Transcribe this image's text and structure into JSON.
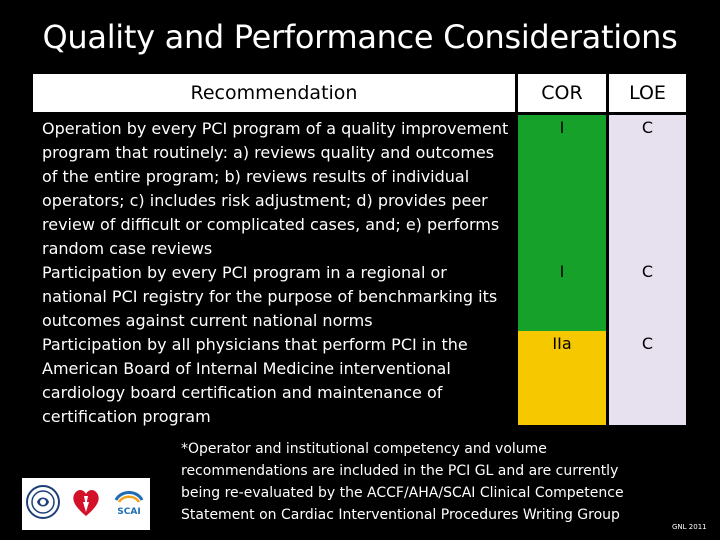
{
  "slide": {
    "title": "Quality and Performance Considerations"
  },
  "table": {
    "headers": {
      "recommendation": "Recommendation",
      "cor": "COR",
      "loe": "LOE"
    },
    "rows": [
      {
        "recommendation": "Operation by every PCI program of a quality improvement program that routinely: a) reviews quality and outcomes of the entire program; b) reviews results of individual operators; c) includes risk adjustment; d) provides peer review of difficult or complicated cases, and; e) performs random case reviews",
        "cor": "I",
        "loe": "C"
      },
      {
        "recommendation": "Participation by every PCI program in a regional or national PCI registry for the purpose of benchmarking its outcomes against current national norms",
        "cor": "I",
        "loe": "C"
      },
      {
        "recommendation": "Participation by all physicians that perform PCI in the American Board of Internal Medicine interventional cardiology board certification and maintenance of certification program",
        "cor": "IIa",
        "loe": "C"
      }
    ],
    "colors": {
      "cor_class_I": "#16a12b",
      "cor_class_IIa": "#f6c800",
      "loe_column": "#e6e0ef"
    }
  },
  "footnote": "*Operator and institutional competency and volume recommendations are included in the PCI GL and are currently being re-evaluated by the ACCF/AHA/SCAI Clinical Competence Statement on Cardiac Interventional Procedures Writing Group",
  "logos": {
    "items": [
      "accf-seal-icon",
      "aha-heart-icon",
      "scai-logo-icon"
    ],
    "scai_text": "SCAI"
  },
  "credit": "GNL 2011"
}
